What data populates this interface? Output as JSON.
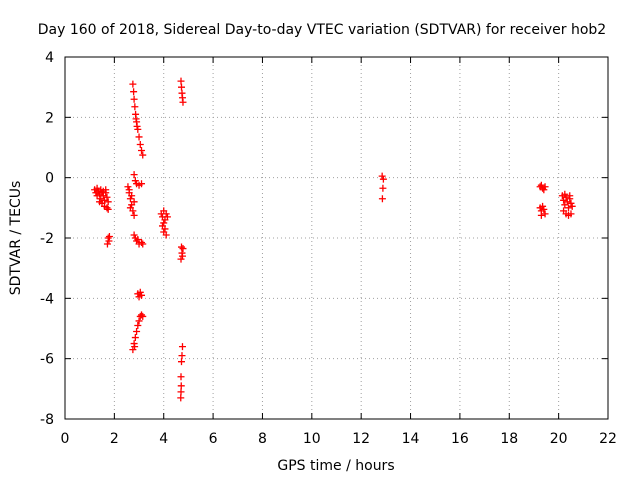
{
  "chart_data": {
    "type": "scatter",
    "title": "Day 160 of 2018, Sidereal Day-to-day VTEC variation (SDTVAR) for receiver hob2",
    "xlabel": "GPS time / hours",
    "ylabel": "SDTVAR / TECUs",
    "xlim": [
      0,
      22
    ],
    "ylim": [
      -8,
      4
    ],
    "xticks": [
      0,
      2,
      4,
      6,
      8,
      10,
      12,
      14,
      16,
      18,
      20,
      22
    ],
    "yticks": [
      -8,
      -6,
      -4,
      -2,
      0,
      2,
      4
    ],
    "grid": true,
    "marker": "+",
    "color": "#ff0000",
    "series": [
      {
        "name": "SDTVAR",
        "points": [
          [
            1.2,
            -0.4
          ],
          [
            1.25,
            -0.5
          ],
          [
            1.3,
            -0.6
          ],
          [
            1.35,
            -0.45
          ],
          [
            1.4,
            -0.55
          ],
          [
            1.45,
            -0.7
          ],
          [
            1.5,
            -0.5
          ],
          [
            1.55,
            -0.6
          ],
          [
            1.6,
            -0.75
          ],
          [
            1.65,
            -0.5
          ],
          [
            1.7,
            -0.65
          ],
          [
            1.75,
            -0.8
          ],
          [
            1.3,
            -0.35
          ],
          [
            1.4,
            -0.8
          ],
          [
            1.5,
            -0.85
          ],
          [
            1.6,
            -0.95
          ],
          [
            1.7,
            -1.0
          ],
          [
            1.75,
            -1.05
          ],
          [
            1.45,
            -0.4
          ],
          [
            1.55,
            -0.45
          ],
          [
            1.65,
            -0.4
          ],
          [
            1.75,
            -2.0
          ],
          [
            1.78,
            -2.1
          ],
          [
            1.8,
            -1.95
          ],
          [
            1.72,
            -2.2
          ],
          [
            2.55,
            -0.3
          ],
          [
            2.6,
            -0.5
          ],
          [
            2.65,
            -0.7
          ],
          [
            2.7,
            -0.9
          ],
          [
            2.75,
            -1.1
          ],
          [
            2.8,
            -1.25
          ],
          [
            2.6,
            -0.4
          ],
          [
            2.7,
            -0.6
          ],
          [
            2.8,
            -0.8
          ],
          [
            2.65,
            -1.0
          ],
          [
            2.85,
            -0.1
          ],
          [
            2.9,
            -0.2
          ],
          [
            3.0,
            -0.25
          ],
          [
            3.1,
            -0.2
          ],
          [
            2.8,
            0.1
          ],
          [
            2.8,
            -1.9
          ],
          [
            2.85,
            -2.0
          ],
          [
            2.9,
            -2.1
          ],
          [
            3.0,
            -2.2
          ],
          [
            3.1,
            -2.15
          ],
          [
            3.15,
            -2.2
          ],
          [
            2.95,
            -2.05
          ],
          [
            2.75,
            3.1
          ],
          [
            2.78,
            2.85
          ],
          [
            2.8,
            2.6
          ],
          [
            2.83,
            2.35
          ],
          [
            2.86,
            2.1
          ],
          [
            2.9,
            1.85
          ],
          [
            2.95,
            1.6
          ],
          [
            3.0,
            1.35
          ],
          [
            3.05,
            1.1
          ],
          [
            3.1,
            0.9
          ],
          [
            3.15,
            0.75
          ],
          [
            2.88,
            1.95
          ],
          [
            2.92,
            1.7
          ],
          [
            2.95,
            -3.85
          ],
          [
            3.0,
            -3.95
          ],
          [
            3.05,
            -3.8
          ],
          [
            3.1,
            -3.9
          ],
          [
            2.75,
            -5.7
          ],
          [
            2.8,
            -5.5
          ],
          [
            2.85,
            -5.3
          ],
          [
            2.9,
            -5.1
          ],
          [
            2.95,
            -4.9
          ],
          [
            3.0,
            -4.75
          ],
          [
            3.05,
            -4.6
          ],
          [
            3.1,
            -4.55
          ],
          [
            3.15,
            -4.6
          ],
          [
            2.82,
            -5.6
          ],
          [
            3.9,
            -1.2
          ],
          [
            3.95,
            -1.3
          ],
          [
            4.0,
            -1.5
          ],
          [
            4.05,
            -1.7
          ],
          [
            4.1,
            -1.9
          ],
          [
            4.0,
            -1.1
          ],
          [
            4.1,
            -1.2
          ],
          [
            3.95,
            -1.6
          ],
          [
            4.05,
            -1.4
          ],
          [
            4.15,
            -1.3
          ],
          [
            4.0,
            -1.8
          ],
          [
            4.7,
            3.2
          ],
          [
            4.72,
            3.0
          ],
          [
            4.74,
            2.8
          ],
          [
            4.76,
            2.65
          ],
          [
            4.78,
            2.5
          ],
          [
            4.72,
            -2.3
          ],
          [
            4.74,
            -2.5
          ],
          [
            4.76,
            -2.6
          ],
          [
            4.7,
            -2.7
          ],
          [
            4.78,
            -2.35
          ],
          [
            4.76,
            -5.6
          ],
          [
            4.74,
            -5.9
          ],
          [
            4.72,
            -6.1
          ],
          [
            4.7,
            -6.6
          ],
          [
            4.71,
            -6.9
          ],
          [
            4.7,
            -7.1
          ],
          [
            4.69,
            -7.3
          ],
          [
            12.85,
            0.05
          ],
          [
            12.9,
            -0.05
          ],
          [
            12.88,
            -0.35
          ],
          [
            12.86,
            -0.7
          ],
          [
            19.25,
            -0.3
          ],
          [
            19.3,
            -0.25
          ],
          [
            19.35,
            -0.35
          ],
          [
            19.4,
            -0.4
          ],
          [
            19.45,
            -0.3
          ],
          [
            19.25,
            -1.0
          ],
          [
            19.3,
            -1.1
          ],
          [
            19.35,
            -0.95
          ],
          [
            19.4,
            -1.05
          ],
          [
            19.45,
            -1.2
          ],
          [
            19.3,
            -1.25
          ],
          [
            20.15,
            -0.6
          ],
          [
            20.2,
            -0.75
          ],
          [
            20.25,
            -0.9
          ],
          [
            20.3,
            -0.65
          ],
          [
            20.35,
            -0.8
          ],
          [
            20.4,
            -1.0
          ],
          [
            20.45,
            -0.7
          ],
          [
            20.5,
            -0.85
          ],
          [
            20.55,
            -0.95
          ],
          [
            20.2,
            -1.1
          ],
          [
            20.3,
            -1.2
          ],
          [
            20.4,
            -1.25
          ],
          [
            20.5,
            -1.2
          ],
          [
            20.25,
            -0.55
          ],
          [
            20.45,
            -0.6
          ]
        ]
      }
    ]
  }
}
